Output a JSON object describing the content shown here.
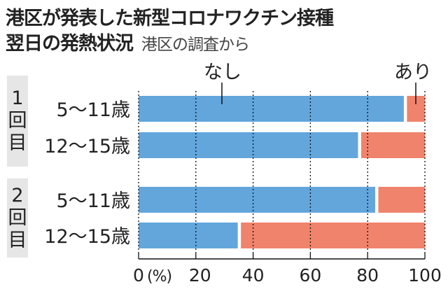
{
  "title": "港区が発表した新型コロナワクチン接種",
  "title2": "翌日の発熱状況",
  "source": "港区の調査から",
  "groups": [
    {
      "label": [
        "1",
        "回",
        "目"
      ]
    },
    {
      "label": [
        "2",
        "回",
        "目"
      ]
    }
  ],
  "chart_data": {
    "type": "bar",
    "orientation": "horizontal-stacked",
    "categories": [
      "5〜11歳",
      "12〜15歳",
      "5〜11歳",
      "12〜15歳"
    ],
    "group_of_category": [
      0,
      0,
      1,
      1
    ],
    "series": [
      {
        "name": "なし",
        "values": [
          93,
          77,
          83,
          35
        ],
        "color": "#62a6dc"
      },
      {
        "name": "あり",
        "values": [
          7,
          23,
          17,
          65
        ],
        "color": "#f0836c"
      }
    ],
    "xlim": [
      0,
      100
    ],
    "xticks": [
      "0",
      "20",
      "40",
      "60",
      "80",
      "100"
    ],
    "xunit": "(%)",
    "grid": true
  }
}
